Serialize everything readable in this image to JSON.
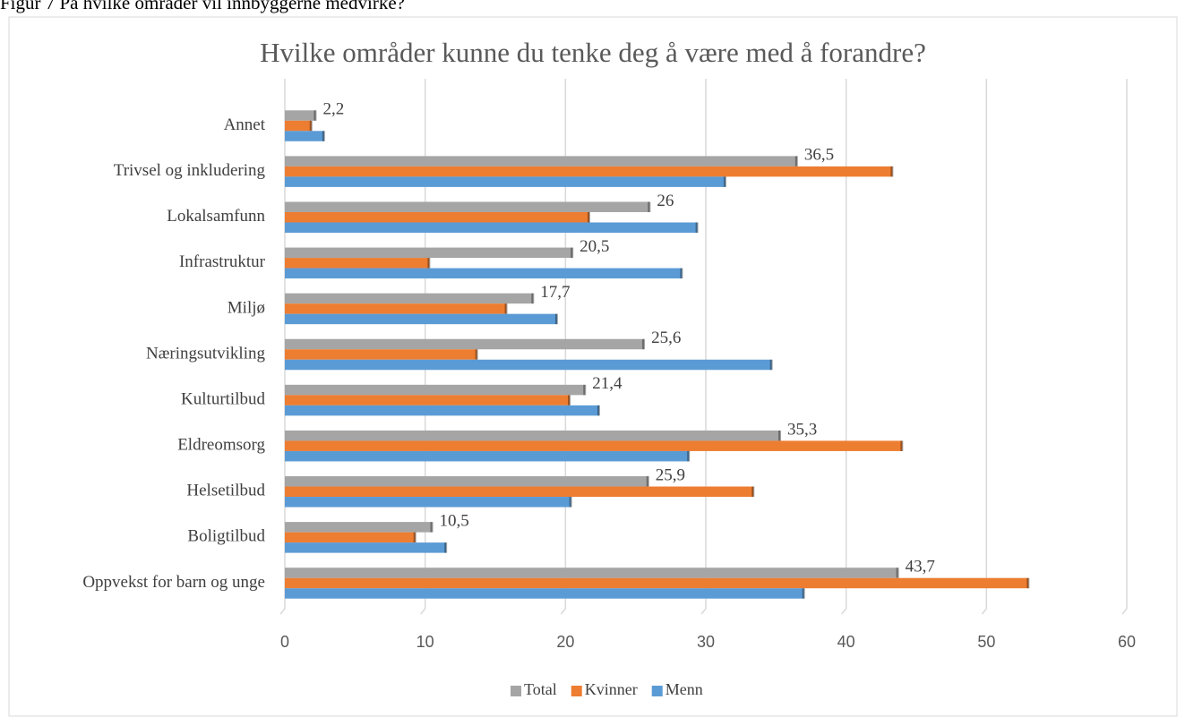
{
  "page_header": "Figur 7 På hvilke områder vil innbyggerne medvirke?",
  "chart_data": {
    "type": "hbar",
    "title": "Hvilke områder kunne du tenke deg å være med å forandre?",
    "categories": [
      "Annet",
      "Trivsel og inkludering",
      "Lokalsamfunn",
      "Infrastruktur",
      "Miljø",
      "Næringsutvikling",
      "Kulturtilbud",
      "Eldreomsorg",
      "Helsetilbud",
      "Boligtilbud",
      "Oppvekst for barn og unge"
    ],
    "series": [
      {
        "name": "Total",
        "color": "#a5a5a5",
        "values": [
          2.2,
          36.5,
          26,
          20.5,
          17.7,
          25.6,
          21.4,
          35.3,
          25.9,
          10.5,
          43.7
        ],
        "value_labels": [
          "2,2",
          "36,5",
          "26",
          "20,5",
          "17,7",
          "25,6",
          "21,4",
          "35,3",
          "25,9",
          "10,5",
          "43,7"
        ]
      },
      {
        "name": "Kvinner",
        "color": "#ed7d31",
        "values": [
          1.9,
          43.3,
          21.7,
          10.3,
          15.8,
          13.7,
          20.3,
          44.0,
          33.4,
          9.3,
          53.0
        ]
      },
      {
        "name": "Menn",
        "color": "#5b9bd5",
        "values": [
          2.8,
          31.4,
          29.4,
          28.3,
          19.4,
          34.7,
          22.4,
          28.8,
          20.4,
          11.5,
          37.0
        ]
      }
    ],
    "xlim": [
      0,
      60
    ],
    "xticks": [
      0,
      10,
      20,
      30,
      40,
      50,
      60
    ],
    "grid": true,
    "legend": "bottom"
  }
}
